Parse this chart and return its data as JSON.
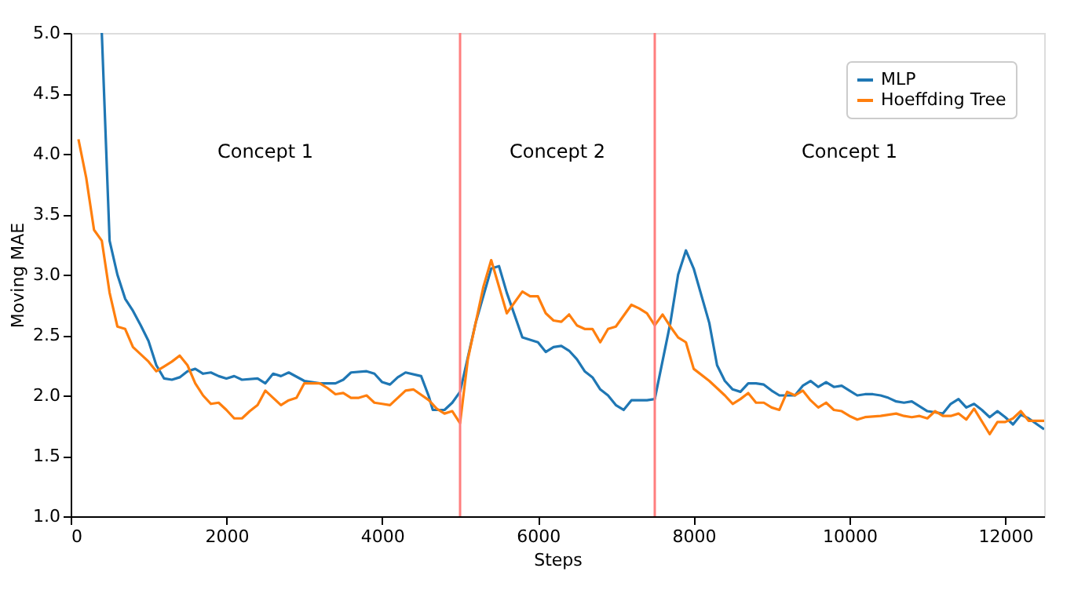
{
  "chart_data": {
    "type": "line",
    "xlabel": "Steps",
    "ylabel": "Moving MAE",
    "xlim": [
      0,
      12500
    ],
    "xticks": [
      0,
      2000,
      4000,
      6000,
      8000,
      10000,
      12000
    ],
    "ylim": [
      1.0,
      5.0
    ],
    "yticks": [
      {
        "value": 1,
        "label": "1.0"
      },
      {
        "value": 1.5,
        "label": "1.5"
      },
      {
        "value": 2,
        "label": "2.0"
      },
      {
        "value": 2.5,
        "label": "2.5"
      },
      {
        "value": 3,
        "label": "3.0"
      },
      {
        "value": 3.5,
        "label": "3.5"
      },
      {
        "value": 4,
        "label": "4.0"
      },
      {
        "value": 4.5,
        "label": "4.5"
      },
      {
        "value": 5,
        "label": "5.0"
      }
    ],
    "grid": false,
    "legend": "top right",
    "marker": "none",
    "line_style": "solid",
    "series": [
      {
        "name": "MLP",
        "color": "#1f77b4",
        "x": [
          400,
          500,
          600,
          700,
          800,
          900,
          1000,
          1100,
          1200,
          1300,
          1400,
          1500,
          1600,
          1700,
          1800,
          1900,
          2000,
          2100,
          2200,
          2400,
          2500,
          2600,
          2700,
          2800,
          3000,
          3200,
          3400,
          3500,
          3600,
          3800,
          3900,
          4000,
          4100,
          4200,
          4300,
          4500,
          4600,
          4650,
          4800,
          4900,
          5000,
          5200,
          5400,
          5500,
          5600,
          5800,
          6000,
          6100,
          6200,
          6300,
          6400,
          6500,
          6600,
          6700,
          6800,
          6900,
          7000,
          7100,
          7200,
          7400,
          7500,
          7700,
          7800,
          7900,
          8000,
          8200,
          8300,
          8400,
          8500,
          8600,
          8700,
          8800,
          8900,
          9000,
          9100,
          9200,
          9300,
          9400,
          9500,
          9600,
          9700,
          9800,
          9900,
          10000,
          10100,
          10200,
          10300,
          10400,
          10500,
          10600,
          10700,
          10800,
          11000,
          11200,
          11300,
          11400,
          11500,
          11600,
          11700,
          11800,
          11900,
          12000,
          12100,
          12200,
          12300,
          12500
        ],
        "values": [
          5.0,
          3.28,
          3.0,
          2.8,
          2.7,
          2.58,
          2.45,
          2.25,
          2.14,
          2.13,
          2.15,
          2.2,
          2.22,
          2.18,
          2.19,
          2.16,
          2.14,
          2.16,
          2.13,
          2.14,
          2.1,
          2.18,
          2.16,
          2.19,
          2.12,
          2.1,
          2.1,
          2.13,
          2.19,
          2.2,
          2.18,
          2.11,
          2.09,
          2.15,
          2.19,
          2.16,
          1.99,
          1.88,
          1.88,
          1.94,
          2.03,
          2.6,
          3.05,
          3.07,
          2.85,
          2.48,
          2.44,
          2.36,
          2.4,
          2.41,
          2.37,
          2.3,
          2.2,
          2.15,
          2.05,
          2.0,
          1.92,
          1.88,
          1.96,
          1.96,
          1.97,
          2.6,
          3.0,
          3.2,
          3.05,
          2.6,
          2.25,
          2.12,
          2.05,
          2.03,
          2.1,
          2.1,
          2.09,
          2.04,
          2.0,
          2.0,
          2.0,
          2.08,
          2.12,
          2.07,
          2.11,
          2.07,
          2.08,
          2.04,
          2.0,
          2.01,
          2.01,
          2.0,
          1.98,
          1.95,
          1.94,
          1.95,
          1.87,
          1.85,
          1.93,
          1.97,
          1.9,
          1.93,
          1.88,
          1.82,
          1.87,
          1.82,
          1.76,
          1.84,
          1.81,
          1.72
        ]
      },
      {
        "name": "Hoeffding Tree",
        "color": "#ff7f0e",
        "x": [
          100,
          200,
          300,
          400,
          500,
          600,
          700,
          800,
          900,
          1000,
          1100,
          1200,
          1300,
          1400,
          1500,
          1600,
          1700,
          1800,
          1900,
          2000,
          2100,
          2200,
          2300,
          2400,
          2500,
          2600,
          2700,
          2800,
          2900,
          3000,
          3200,
          3300,
          3400,
          3500,
          3600,
          3700,
          3800,
          3900,
          4000,
          4100,
          4200,
          4300,
          4400,
          4600,
          4700,
          4800,
          4900,
          5000,
          5100,
          5300,
          5400,
          5600,
          5800,
          5900,
          6000,
          6100,
          6200,
          6300,
          6400,
          6500,
          6600,
          6700,
          6800,
          6900,
          7000,
          7200,
          7300,
          7400,
          7500,
          7600,
          7700,
          7800,
          7900,
          8000,
          8200,
          8400,
          8500,
          8600,
          8700,
          8800,
          8900,
          9000,
          9100,
          9200,
          9300,
          9400,
          9500,
          9600,
          9700,
          9800,
          9900,
          10000,
          10100,
          10200,
          10400,
          10600,
          10700,
          10800,
          10900,
          11000,
          11100,
          11200,
          11300,
          11400,
          11500,
          11600,
          11800,
          11900,
          12000,
          12100,
          12200,
          12300,
          12400,
          12500
        ],
        "values": [
          4.12,
          3.8,
          3.37,
          3.28,
          2.85,
          2.57,
          2.55,
          2.4,
          2.34,
          2.28,
          2.2,
          2.24,
          2.28,
          2.33,
          2.25,
          2.1,
          2.0,
          1.93,
          1.94,
          1.88,
          1.81,
          1.81,
          1.87,
          1.92,
          2.04,
          1.98,
          1.92,
          1.96,
          1.98,
          2.1,
          2.1,
          2.06,
          2.01,
          2.02,
          1.98,
          1.98,
          2.0,
          1.94,
          1.93,
          1.92,
          1.98,
          2.04,
          2.05,
          1.96,
          1.89,
          1.85,
          1.87,
          1.77,
          2.3,
          2.9,
          3.12,
          2.68,
          2.86,
          2.82,
          2.82,
          2.68,
          2.62,
          2.61,
          2.67,
          2.58,
          2.55,
          2.55,
          2.44,
          2.55,
          2.57,
          2.75,
          2.72,
          2.68,
          2.58,
          2.67,
          2.57,
          2.48,
          2.44,
          2.22,
          2.12,
          2.0,
          1.93,
          1.97,
          2.02,
          1.94,
          1.94,
          1.9,
          1.88,
          2.03,
          2.0,
          2.04,
          1.96,
          1.9,
          1.94,
          1.88,
          1.87,
          1.83,
          1.8,
          1.82,
          1.83,
          1.85,
          1.83,
          1.82,
          1.83,
          1.81,
          1.87,
          1.83,
          1.83,
          1.85,
          1.8,
          1.89,
          1.68,
          1.78,
          1.78,
          1.81,
          1.87,
          1.79,
          1.79,
          1.79
        ]
      }
    ],
    "ref_lines": [
      {
        "axis": "x",
        "value": 5000,
        "color": "#ff7f7f"
      },
      {
        "axis": "x",
        "value": 7500,
        "color": "#ff7f7f"
      }
    ],
    "annotations": [
      "Concept 1",
      "Concept 2",
      "Concept 1"
    ]
  }
}
